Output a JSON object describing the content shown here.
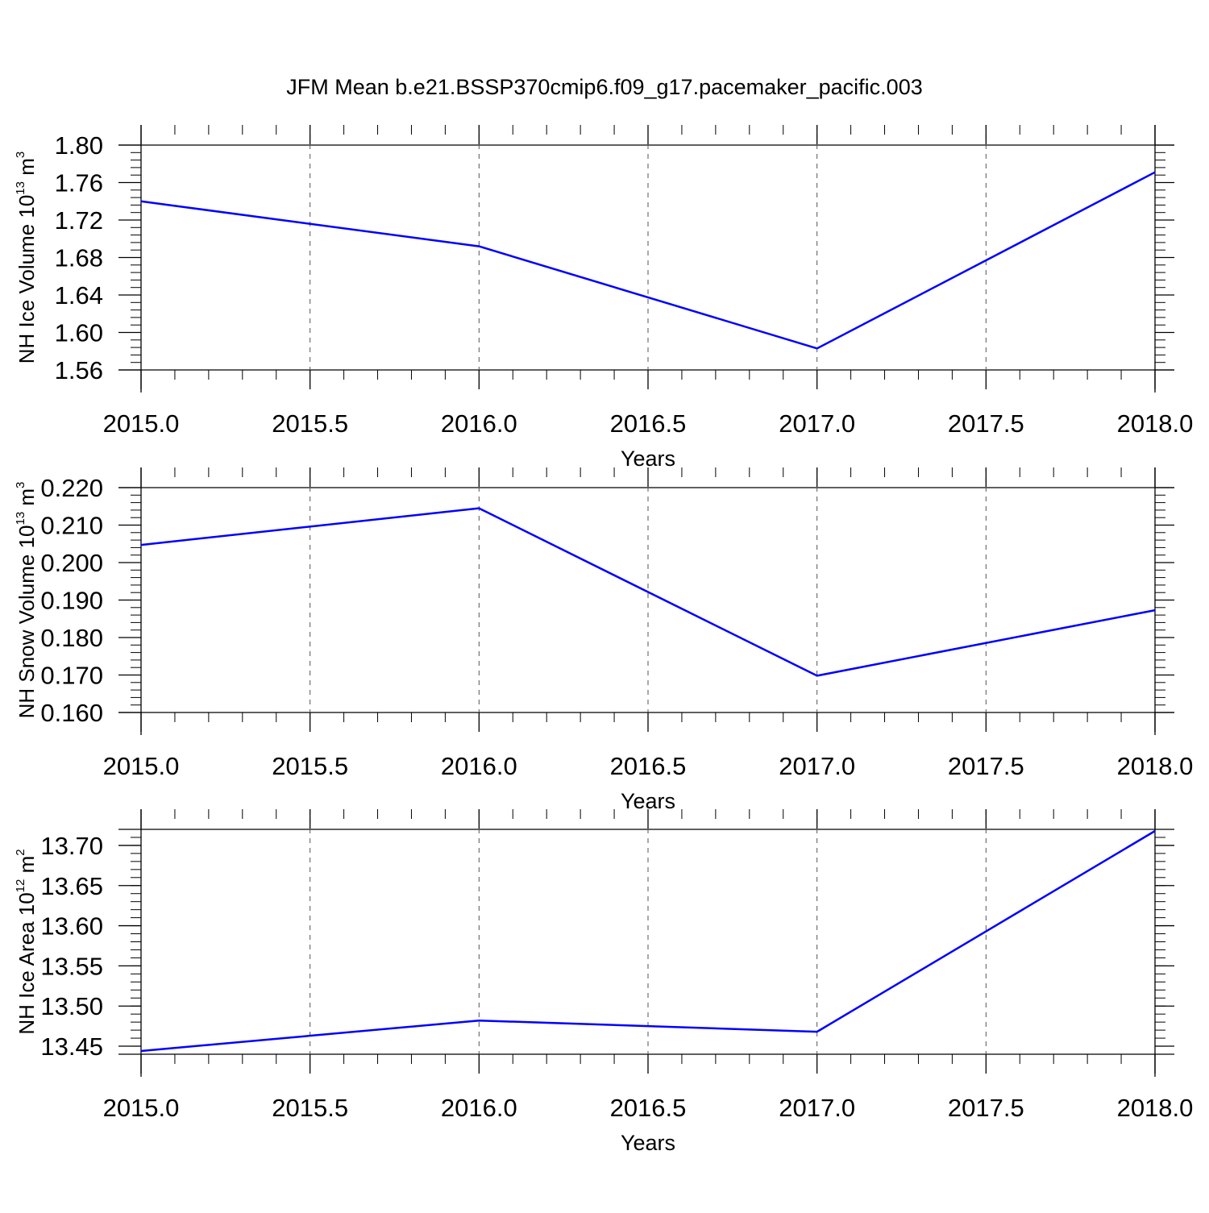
{
  "title": "JFM Mean b.e21.BSSP370cmip6.f09_g17.pacemaker_pacific.003",
  "colors": {
    "line": "#0000ff",
    "axis": "#000000",
    "grid": "#555555"
  },
  "chart_data": [
    {
      "type": "line",
      "title": "JFM Mean b.e21.BSSP370cmip6.f09_g17.pacemaker_pacific.003",
      "ylabel": {
        "text": "NH Ice Volume 10",
        "exponent": "13",
        "unit": " m",
        "unit_exponent": "3"
      },
      "xlabel": "Years",
      "xlim": [
        2015.0,
        2018.0
      ],
      "ylim": [
        1.56,
        1.8
      ],
      "xticks": [
        "2015.0",
        "2015.5",
        "2016.0",
        "2016.5",
        "2017.0",
        "2017.5",
        "2018.0"
      ],
      "yticks": [
        "1.56",
        "1.60",
        "1.64",
        "1.68",
        "1.72",
        "1.76",
        "1.80"
      ],
      "x": [
        2015.0,
        2016.0,
        2017.0,
        2018.0
      ],
      "y": [
        1.74,
        1.692,
        1.583,
        1.771
      ],
      "grid": "dashed vertical at major x ticks"
    },
    {
      "type": "line",
      "ylabel": {
        "text": "NH Snow Volume 10",
        "exponent": "13",
        "unit": " m",
        "unit_exponent": "3"
      },
      "xlabel": "Years",
      "xlim": [
        2015.0,
        2018.0
      ],
      "ylim": [
        0.16,
        0.22
      ],
      "xticks": [
        "2015.0",
        "2015.5",
        "2016.0",
        "2016.5",
        "2017.0",
        "2017.5",
        "2018.0"
      ],
      "yticks": [
        "0.160",
        "0.170",
        "0.180",
        "0.190",
        "0.200",
        "0.210",
        "0.220"
      ],
      "x": [
        2015.0,
        2016.0,
        2017.0,
        2018.0
      ],
      "y": [
        0.2047,
        0.2145,
        0.1698,
        0.1873
      ],
      "grid": "dashed vertical at major x ticks"
    },
    {
      "type": "line",
      "ylabel": {
        "text": "NH Ice Area 10",
        "exponent": "12",
        "unit": " m",
        "unit_exponent": "2"
      },
      "xlabel": "Years",
      "xlim": [
        2015.0,
        2018.0
      ],
      "ylim": [
        13.44,
        13.72
      ],
      "xticks": [
        "2015.0",
        "2015.5",
        "2016.0",
        "2016.5",
        "2017.0",
        "2017.5",
        "2018.0"
      ],
      "yticks": [
        "13.45",
        "13.50",
        "13.55",
        "13.60",
        "13.65",
        "13.70"
      ],
      "x": [
        2015.0,
        2016.0,
        2017.0,
        2018.0
      ],
      "y": [
        13.444,
        13.482,
        13.468,
        13.718
      ],
      "grid": "dashed vertical at major x ticks"
    }
  ]
}
